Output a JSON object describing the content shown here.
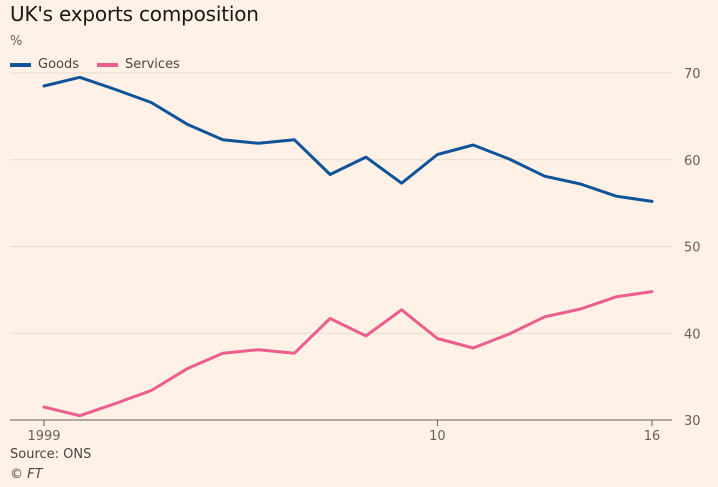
{
  "colors": {
    "background": "#fff1e5",
    "goods": "#0f5499",
    "services": "#eb5e8d",
    "grid": "#e6d9ce",
    "axis": "#66605c"
  },
  "footer": {
    "source": "Source: ONS",
    "credit": "© FT"
  },
  "chart_data": {
    "type": "line",
    "title": "UK's exports composition",
    "ylabel": "%",
    "xlabel": "",
    "x": [
      1999,
      2000,
      2001,
      2002,
      2003,
      2004,
      2005,
      2006,
      2007,
      2008,
      2009,
      2010,
      2011,
      2012,
      2013,
      2014,
      2015,
      2016
    ],
    "series": [
      {
        "name": "Goods",
        "color": "#0f5499",
        "values": [
          68.5,
          69.5,
          68.1,
          66.6,
          64.1,
          62.3,
          61.9,
          62.3,
          58.3,
          60.3,
          57.3,
          60.6,
          61.7,
          60.1,
          58.1,
          57.2,
          55.8,
          55.2
        ]
      },
      {
        "name": "Services",
        "color": "#eb5e8d",
        "values": [
          31.5,
          30.5,
          31.9,
          33.4,
          35.9,
          37.7,
          38.1,
          37.7,
          41.7,
          39.7,
          42.7,
          39.4,
          38.3,
          39.9,
          41.9,
          42.8,
          44.2,
          44.8
        ]
      }
    ],
    "x_ticks": [
      {
        "value": 1999,
        "label": "1999"
      },
      {
        "value": 2010,
        "label": "10"
      },
      {
        "value": 2016,
        "label": "16"
      }
    ],
    "y_ticks": [
      30,
      40,
      50,
      60,
      70
    ],
    "ylim": [
      30,
      70
    ],
    "y_axis_side": "right",
    "grid": true,
    "legend_position": "top-left"
  }
}
